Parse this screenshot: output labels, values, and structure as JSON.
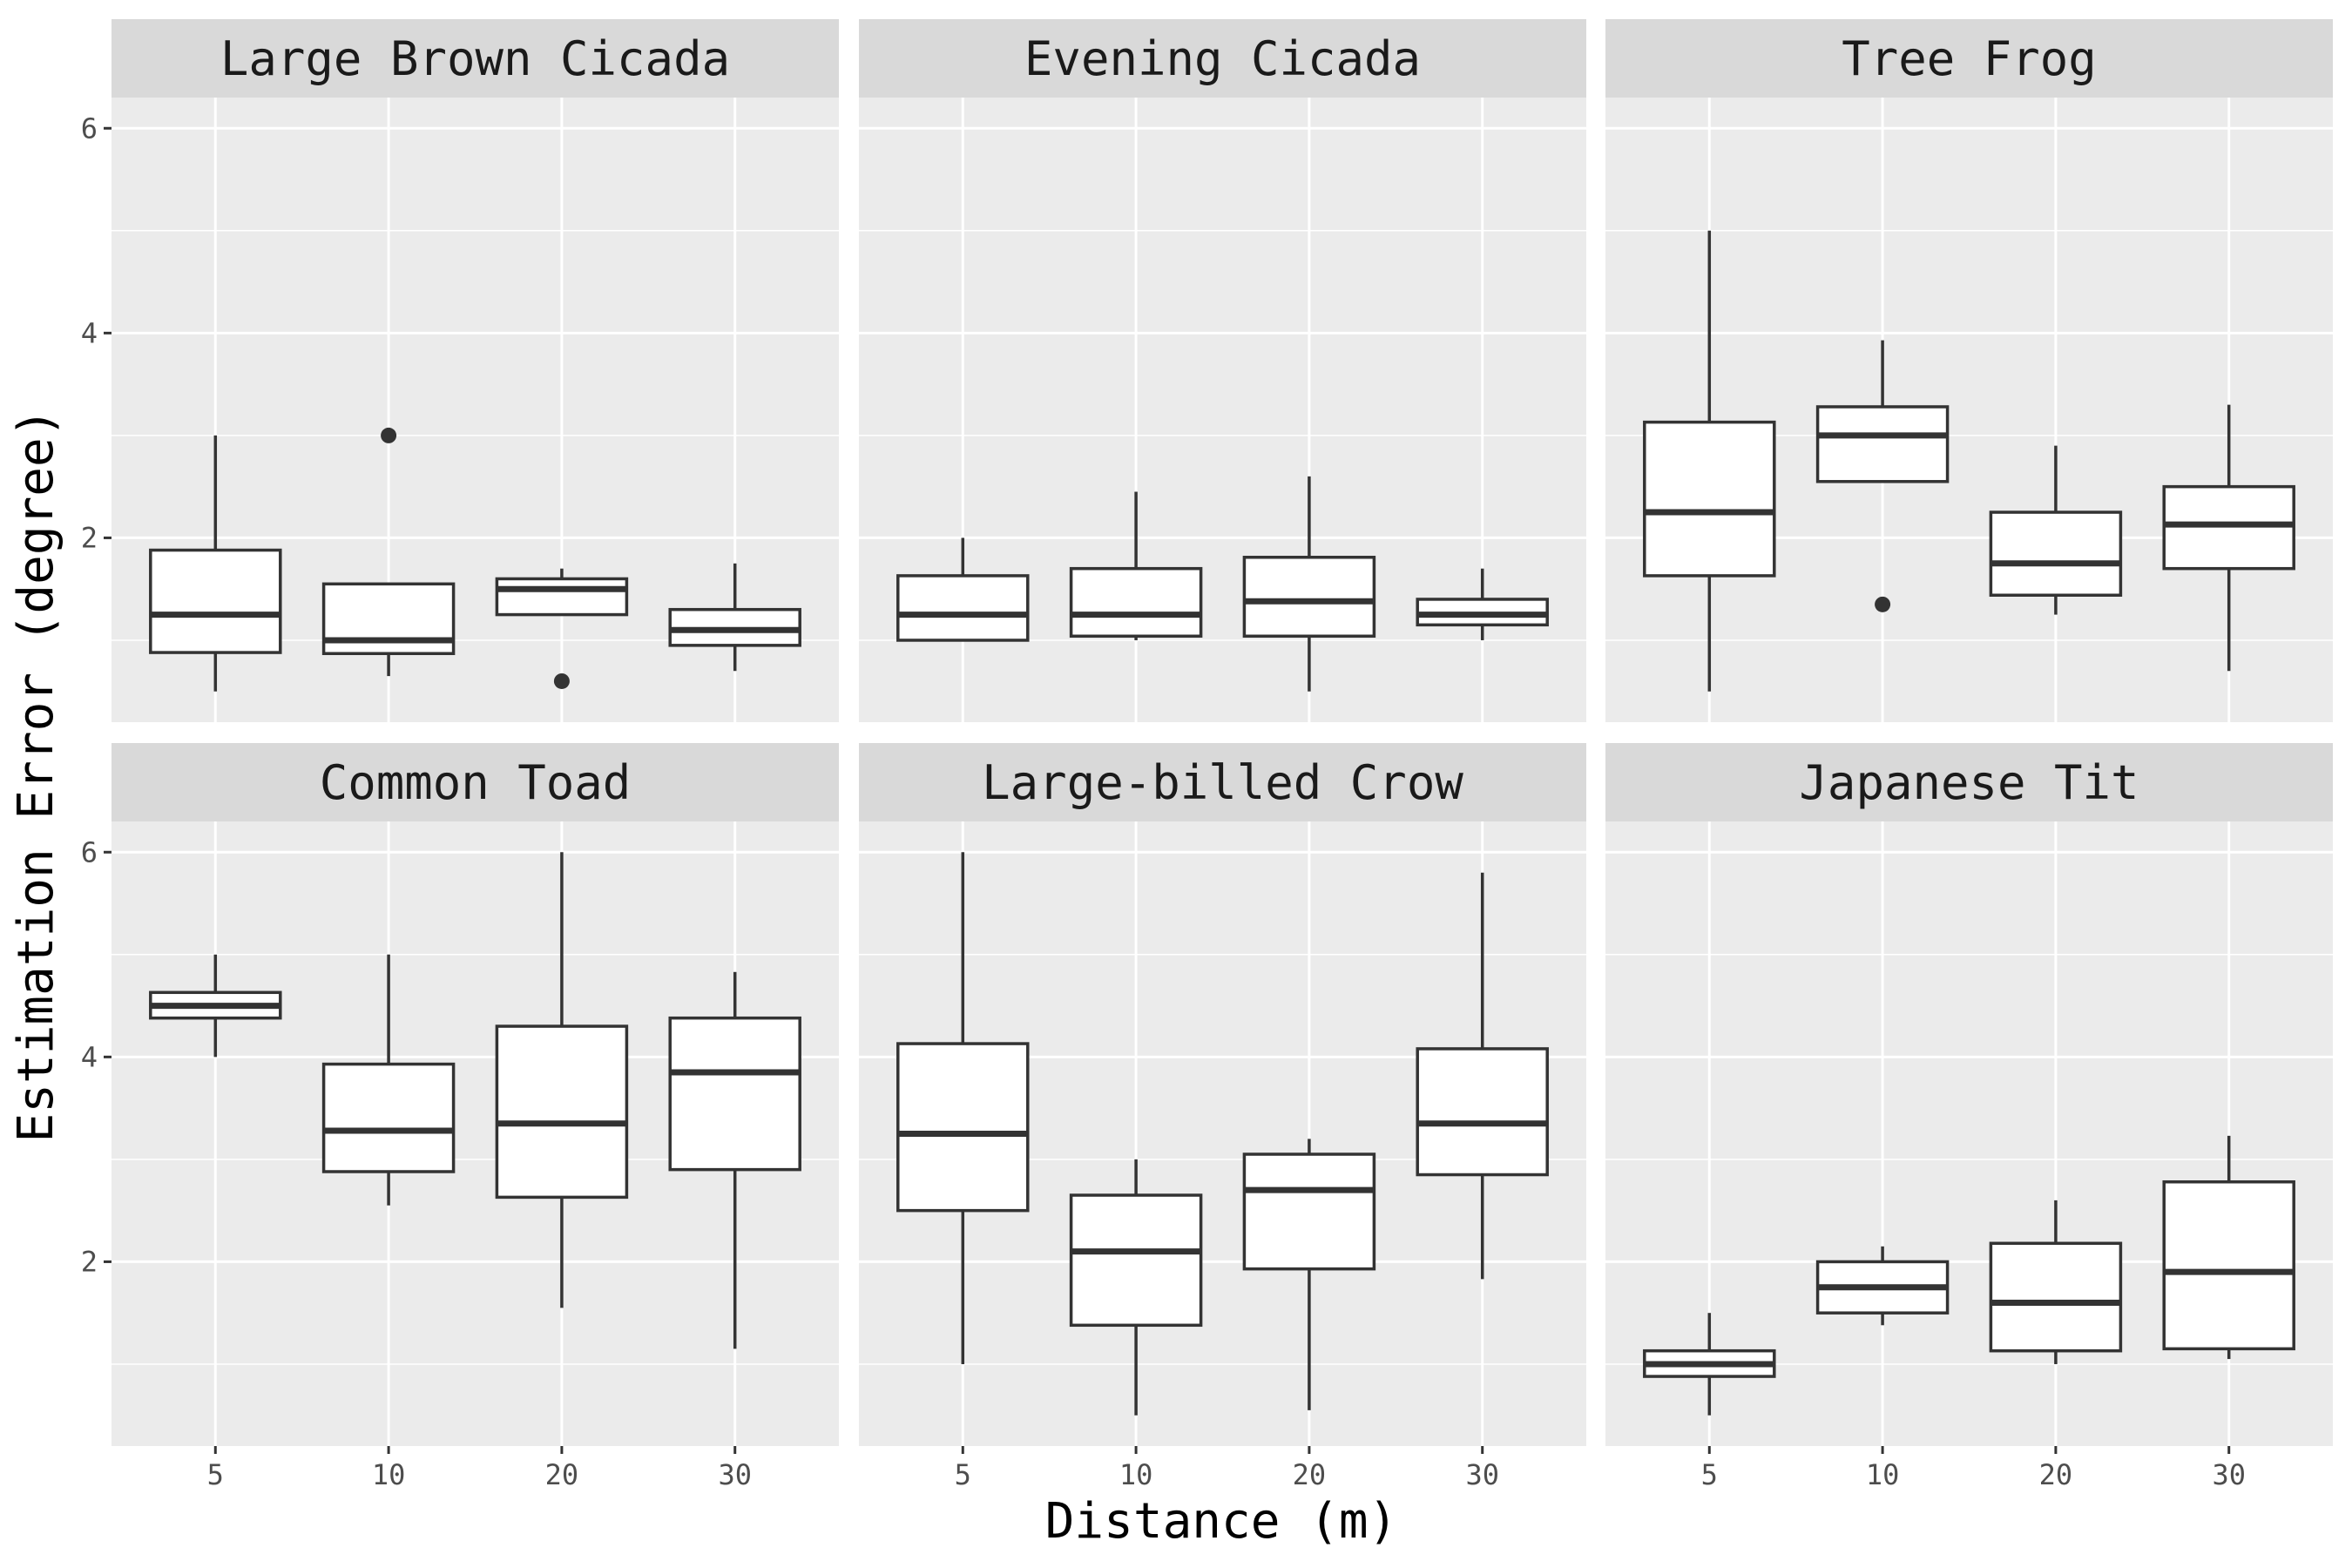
{
  "chart_data": {
    "type": "boxplot",
    "xlabel": "Distance (m)",
    "ylabel": "Estimation Error (degree)",
    "categories": [
      "5",
      "10",
      "20",
      "30"
    ],
    "y_ticks": [
      2,
      4,
      6
    ],
    "ylim": [
      0.2,
      6.3
    ],
    "grid": true,
    "colors": {
      "panel": "#ebebeb",
      "strip": "#d9d9d9",
      "grid": "#ffffff",
      "box_line": "#333333",
      "box_fill": "#ffffff"
    },
    "panels": [
      {
        "title": "Large Brown Cicada",
        "boxes": [
          {
            "x": "5",
            "lower": 0.5,
            "q1": 0.88,
            "median": 1.25,
            "q3": 1.88,
            "upper": 3.0,
            "outliers": []
          },
          {
            "x": "10",
            "lower": 0.65,
            "q1": 0.87,
            "median": 1.0,
            "q3": 1.55,
            "upper": 0.87,
            "outliers": [
              3.0
            ]
          },
          {
            "x": "20",
            "lower": 1.25,
            "q1": 1.25,
            "median": 1.5,
            "q3": 1.6,
            "upper": 1.7,
            "outliers": [
              0.6
            ]
          },
          {
            "x": "30",
            "lower": 0.7,
            "q1": 0.95,
            "median": 1.1,
            "q3": 1.3,
            "upper": 1.75,
            "outliers": []
          }
        ]
      },
      {
        "title": "Evening Cicada",
        "boxes": [
          {
            "x": "5",
            "lower": 1.0,
            "q1": 1.0,
            "median": 1.25,
            "q3": 1.63,
            "upper": 2.0,
            "outliers": []
          },
          {
            "x": "10",
            "lower": 1.0,
            "q1": 1.04,
            "median": 1.25,
            "q3": 1.7,
            "upper": 2.45,
            "outliers": []
          },
          {
            "x": "20",
            "lower": 0.5,
            "q1": 1.04,
            "median": 1.38,
            "q3": 1.81,
            "upper": 2.6,
            "outliers": []
          },
          {
            "x": "30",
            "lower": 1.0,
            "q1": 1.15,
            "median": 1.25,
            "q3": 1.4,
            "upper": 1.7,
            "outliers": []
          }
        ]
      },
      {
        "title": "Tree Frog",
        "boxes": [
          {
            "x": "5",
            "lower": 0.5,
            "q1": 1.63,
            "median": 2.25,
            "q3": 3.13,
            "upper": 5.0,
            "outliers": []
          },
          {
            "x": "10",
            "lower": 2.55,
            "q1": 2.55,
            "median": 3.0,
            "q3": 3.28,
            "upper": 3.93,
            "outliers": [
              1.35
            ]
          },
          {
            "x": "20",
            "lower": 1.25,
            "q1": 1.44,
            "median": 1.75,
            "q3": 2.25,
            "upper": 2.9,
            "outliers": []
          },
          {
            "x": "30",
            "lower": 0.7,
            "q1": 1.7,
            "median": 2.13,
            "q3": 2.5,
            "upper": 3.3,
            "outliers": []
          }
        ]
      },
      {
        "title": "Common Toad",
        "boxes": [
          {
            "x": "5",
            "lower": 4.0,
            "q1": 4.38,
            "median": 4.5,
            "q3": 4.63,
            "upper": 5.0,
            "outliers": []
          },
          {
            "x": "10",
            "lower": 2.55,
            "q1": 2.88,
            "median": 3.28,
            "q3": 3.93,
            "upper": 5.0,
            "outliers": []
          },
          {
            "x": "20",
            "lower": 1.55,
            "q1": 2.63,
            "median": 3.35,
            "q3": 4.3,
            "upper": 6.0,
            "outliers": []
          },
          {
            "x": "30",
            "lower": 1.15,
            "q1": 2.9,
            "median": 3.85,
            "q3": 4.38,
            "upper": 4.83,
            "outliers": []
          }
        ]
      },
      {
        "title": "Large-billed Crow",
        "boxes": [
          {
            "x": "5",
            "lower": 1.0,
            "q1": 2.5,
            "median": 3.25,
            "q3": 4.13,
            "upper": 6.0,
            "outliers": []
          },
          {
            "x": "10",
            "lower": 0.5,
            "q1": 1.38,
            "median": 2.1,
            "q3": 2.65,
            "upper": 3.0,
            "outliers": []
          },
          {
            "x": "20",
            "lower": 0.55,
            "q1": 1.93,
            "median": 2.7,
            "q3": 3.05,
            "upper": 3.2,
            "outliers": []
          },
          {
            "x": "30",
            "lower": 1.83,
            "q1": 2.85,
            "median": 3.35,
            "q3": 4.08,
            "upper": 5.8,
            "outliers": []
          }
        ]
      },
      {
        "title": "Japanese Tit",
        "boxes": [
          {
            "x": "5",
            "lower": 0.5,
            "q1": 0.88,
            "median": 1.0,
            "q3": 1.13,
            "upper": 1.5,
            "outliers": []
          },
          {
            "x": "10",
            "lower": 1.38,
            "q1": 1.5,
            "median": 1.75,
            "q3": 2.0,
            "upper": 2.15,
            "outliers": []
          },
          {
            "x": "20",
            "lower": 1.0,
            "q1": 1.13,
            "median": 1.6,
            "q3": 2.18,
            "upper": 2.6,
            "outliers": []
          },
          {
            "x": "30",
            "lower": 1.05,
            "q1": 1.15,
            "median": 1.9,
            "q3": 2.78,
            "upper": 3.23,
            "outliers": []
          }
        ]
      }
    ]
  }
}
